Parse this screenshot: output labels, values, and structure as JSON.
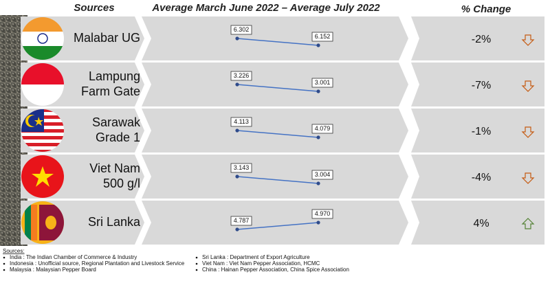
{
  "header": {
    "sources": "Sources",
    "period": "Average March June 2022 – Average July 2022",
    "change": "% Change"
  },
  "chart_data": [
    {
      "type": "line",
      "title": [
        "Malabar UG"
      ],
      "categories": [
        null,
        null
      ],
      "values": [
        6.302,
        6.152
      ],
      "color": "#4472c4",
      "change": "-2%"
    },
    {
      "type": "line",
      "title": [
        "Lampung",
        "Farm Gate"
      ],
      "categories": [
        null,
        null
      ],
      "values": [
        3.226,
        3.001
      ],
      "color": "#4472c4",
      "change": "-7%"
    },
    {
      "type": "line",
      "title": [
        "Sarawak",
        "Grade 1"
      ],
      "categories": [
        null,
        null
      ],
      "values": [
        4.113,
        4.079
      ],
      "color": "#4472c4",
      "change": "-1%"
    },
    {
      "type": "line",
      "title": [
        "Viet Nam",
        "500 g/l"
      ],
      "categories": [
        null,
        null
      ],
      "values": [
        3.143,
        3.004
      ],
      "color": "#4472c4",
      "change": "-4%"
    },
    {
      "type": "line",
      "title": [
        "Sri Lanka"
      ],
      "categories": [
        null,
        null
      ],
      "values": [
        4.787,
        4.97
      ],
      "value_labels": [
        "4.787",
        "4.970"
      ],
      "color": "#4472c4",
      "change": "4%"
    }
  ],
  "sources": {
    "title": "Sources:",
    "left": [
      "India : The Indian Chamber of Commerce & Industry",
      "Indonesia : Unofficial source, Regional Plantation and Livestock Service",
      "Malaysia : Malaysian Pepper Board"
    ],
    "right": [
      "Sri Lanka : Department of Export Agriculture",
      "Viet Nam : Viet Nam Pepper Association, HCMC",
      "China : Hainan Pepper Association, China Spice Association"
    ]
  }
}
